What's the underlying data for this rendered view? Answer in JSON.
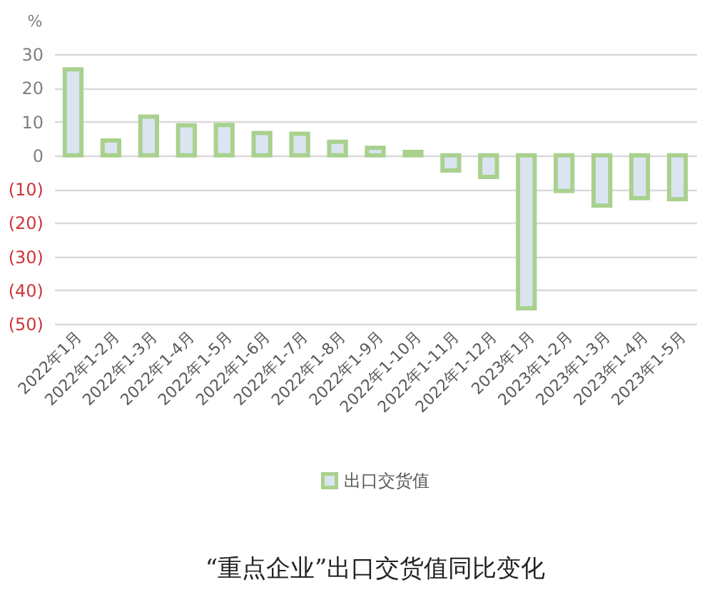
{
  "chart_data": {
    "type": "bar",
    "title": "“重点企业”出口交货值同比变化",
    "ylabel": "%",
    "categories": [
      "2022年1月",
      "2022年1-2月",
      "2022年1-3月",
      "2022年1-4月",
      "2022年1-5月",
      "2022年1-6月",
      "2022年1-7月",
      "2022年1-8月",
      "2022年1-9月",
      "2022年1-10月",
      "2022年1-11月",
      "2022年1-12月",
      "2023年1月",
      "2023年1-2月",
      "2023年1-3月",
      "2023年1-4月",
      "2023年1-5月"
    ],
    "series": [
      {
        "name": "出口交货值",
        "color": "#dbe5f1",
        "values": [
          25.5,
          4.4,
          11.5,
          8.9,
          9.0,
          6.6,
          6.4,
          4.0,
          2.2,
          1.0,
          -4.5,
          -6.4,
          -45.4,
          -10.6,
          -14.9,
          -12.7,
          -13.0
        ]
      }
    ],
    "ylim": [
      -50,
      30
    ],
    "yticks": [
      {
        "value": -50,
        "label": "(50)"
      },
      {
        "value": -40,
        "label": "(40)"
      },
      {
        "value": -30,
        "label": "(30)"
      },
      {
        "value": -20,
        "label": "(20)"
      },
      {
        "value": -10,
        "label": "(10)"
      },
      0,
      10,
      20,
      30
    ],
    "grid": "y",
    "legend": "bottom"
  }
}
